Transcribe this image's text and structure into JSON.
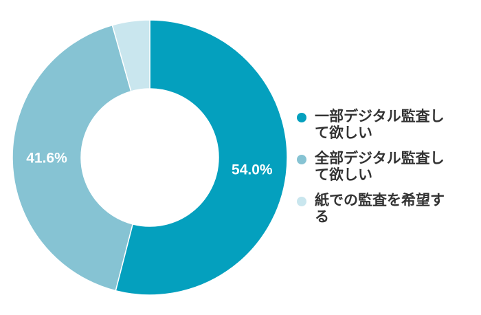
{
  "chart_data": {
    "type": "donut",
    "categories": [
      "一部デジタル監査して欲しい",
      "全部デジタル監査して欲しい",
      "紙での監査を希望する"
    ],
    "values": [
      54.0,
      41.6,
      4.4
    ],
    "value_labels": [
      "54.0%",
      "41.6%",
      null
    ],
    "colors": [
      "#04a0be",
      "#86c3d3",
      "#c9e6ee"
    ],
    "legend": "right"
  }
}
